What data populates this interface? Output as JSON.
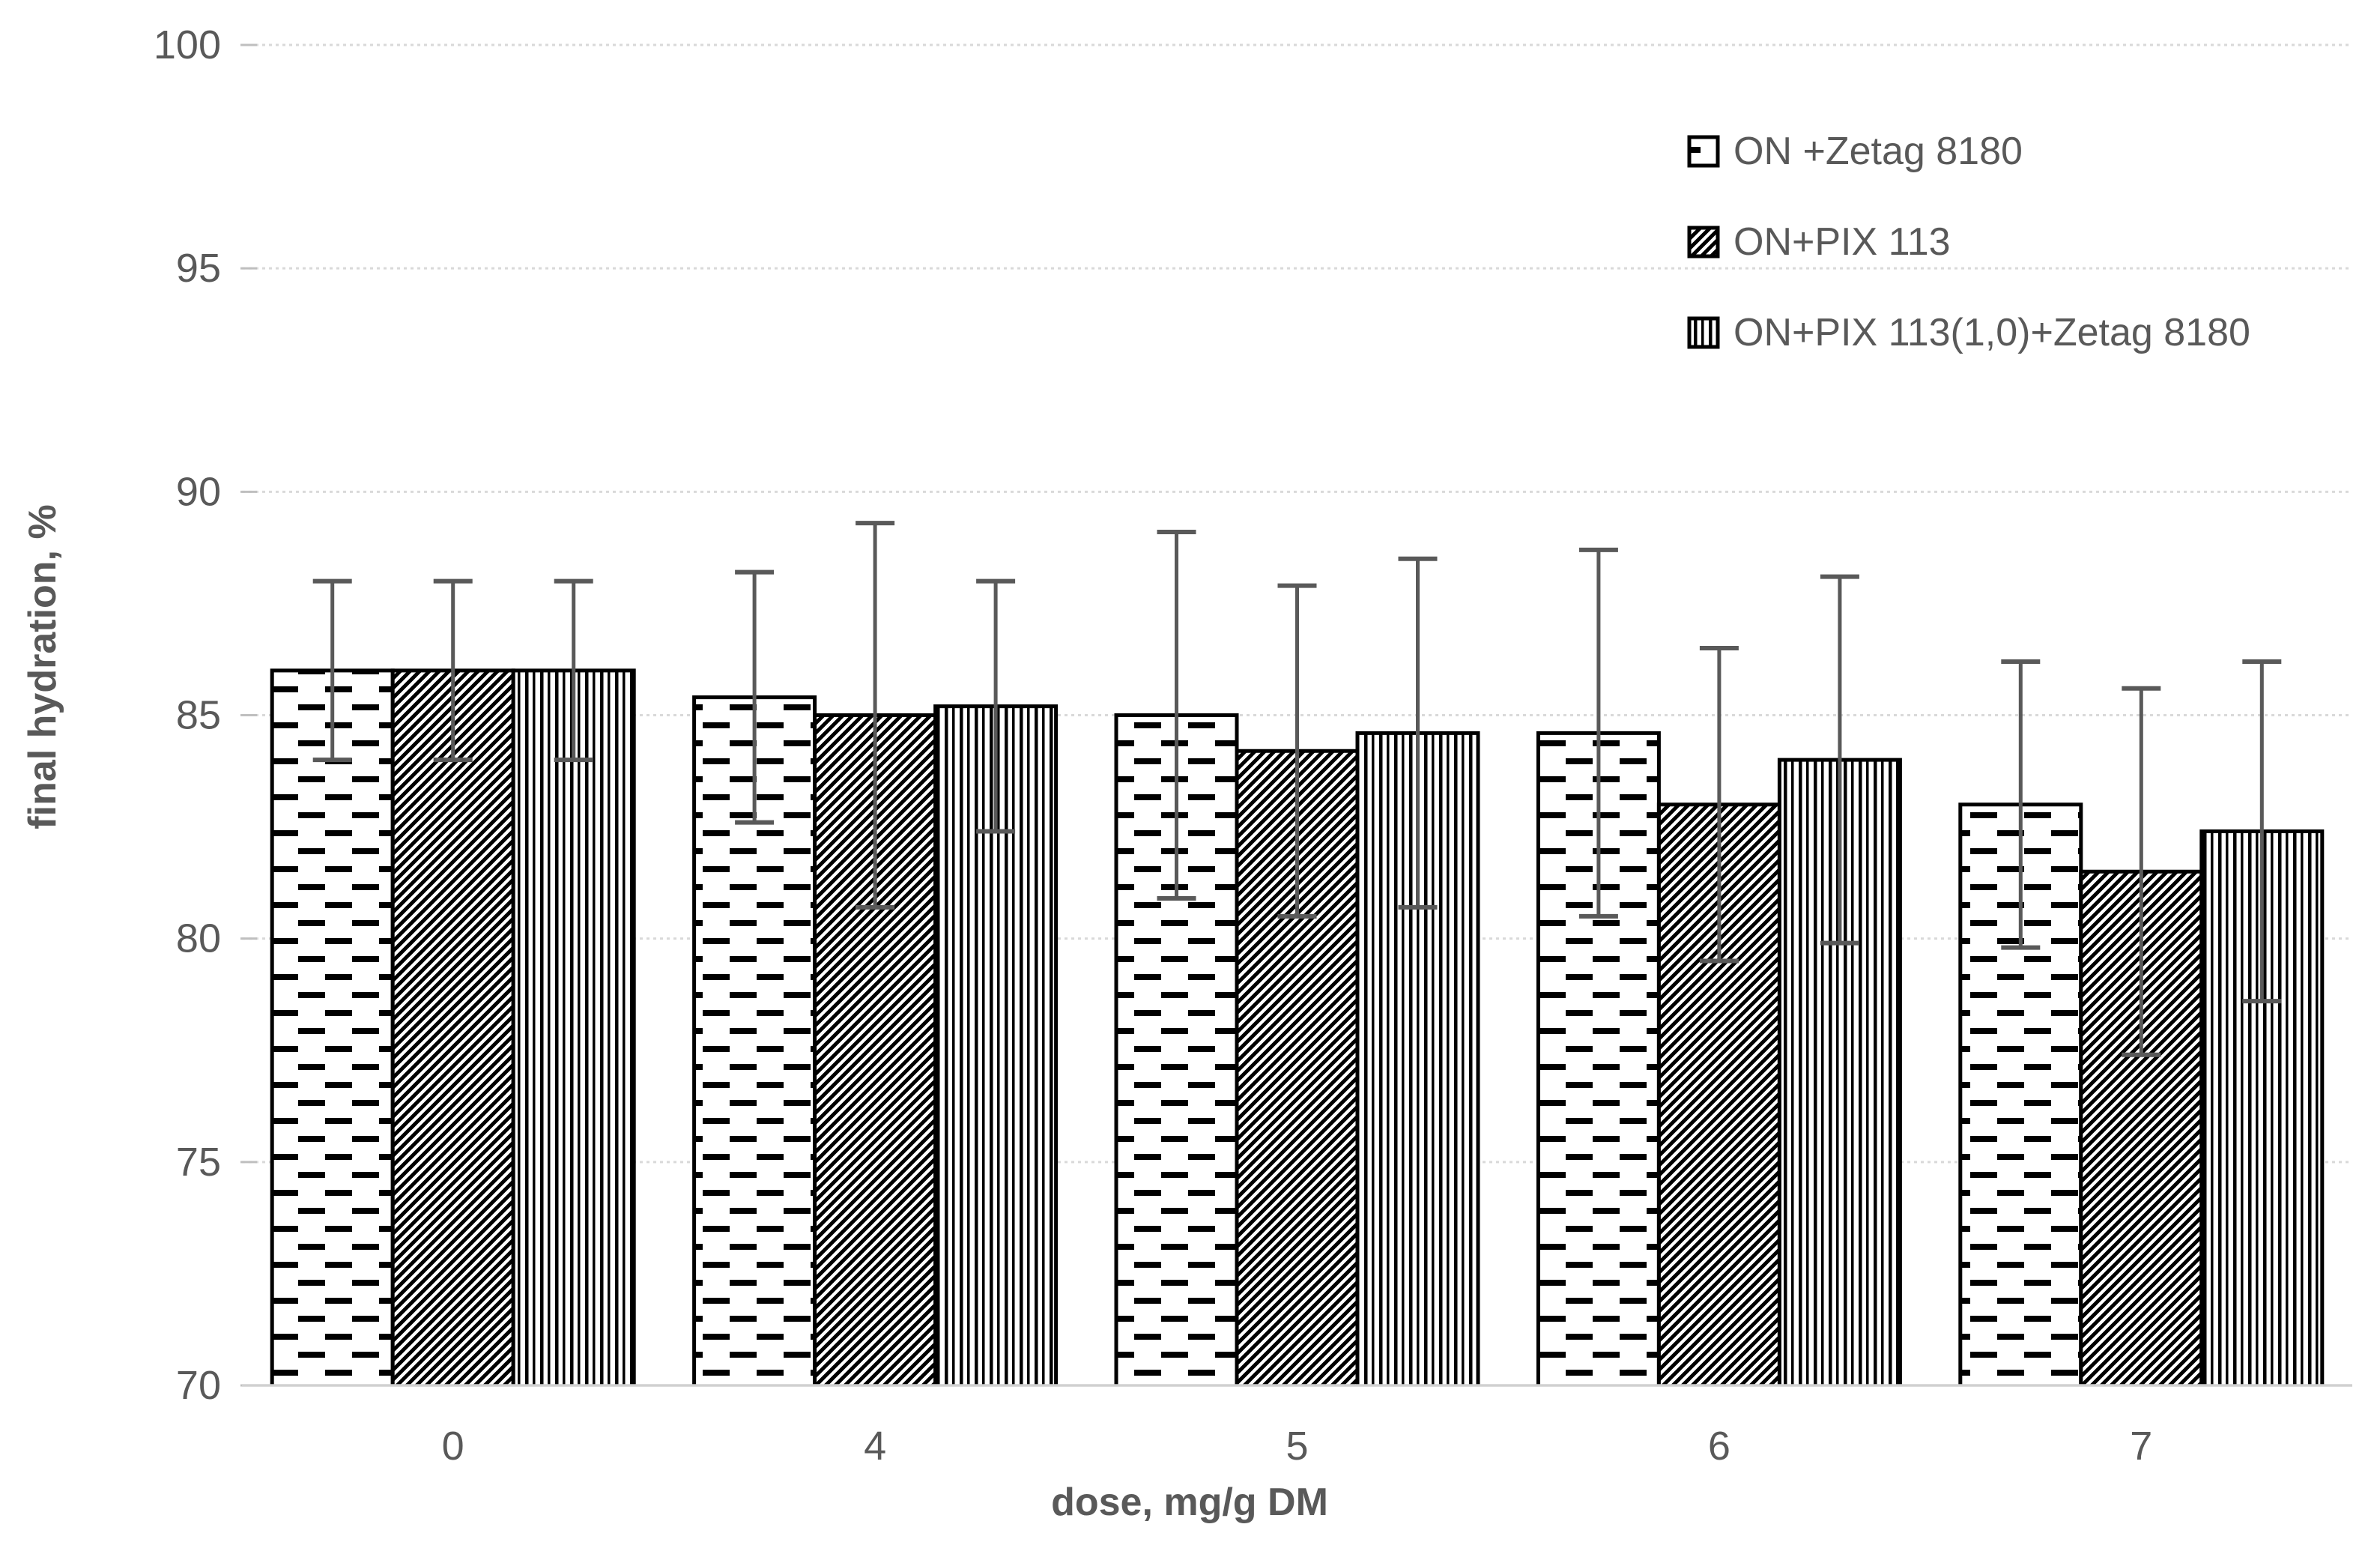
{
  "chart_data": {
    "type": "bar",
    "title": "",
    "xlabel": "dose, mg/g DM",
    "ylabel": "final hydration, %",
    "categories": [
      "0",
      "4",
      "5",
      "6",
      "7"
    ],
    "ylim": [
      70,
      100
    ],
    "ytick_step": 5,
    "yticks": [
      70,
      75,
      80,
      85,
      90,
      95,
      100
    ],
    "grid": true,
    "legend_position": "top-right",
    "error_bars": "symmetric, cap-ended, drawn over bars",
    "colors": {
      "background": "#ffffff",
      "bar_fill": "#ffffff",
      "bar_outline": "#000000",
      "pattern_ink": "#000000",
      "error_bar": "#595959",
      "axis_text": "#595959",
      "gridline": "#d9d9d9",
      "axis_line": "#d0d0d0",
      "tick_mark": "#bfbfbf"
    },
    "series": [
      {
        "name": "ON +Zetag 8180",
        "pattern": "horizontal-dashes",
        "values": [
          86.0,
          85.4,
          85.0,
          84.6,
          83.0
        ],
        "errors": [
          2.0,
          2.8,
          4.1,
          4.1,
          3.2
        ]
      },
      {
        "name": "ON+PIX 113",
        "pattern": "diagonal-stripes",
        "values": [
          86.0,
          85.0,
          84.2,
          83.0,
          81.5
        ],
        "errors": [
          2.0,
          4.3,
          3.7,
          3.5,
          4.1
        ]
      },
      {
        "name": "ON+PIX 113(1,0)+Zetag 8180",
        "pattern": "vertical-stripes",
        "values": [
          86.0,
          85.2,
          84.6,
          84.0,
          82.4
        ],
        "errors": [
          2.0,
          2.8,
          3.9,
          4.1,
          3.8
        ]
      }
    ]
  }
}
